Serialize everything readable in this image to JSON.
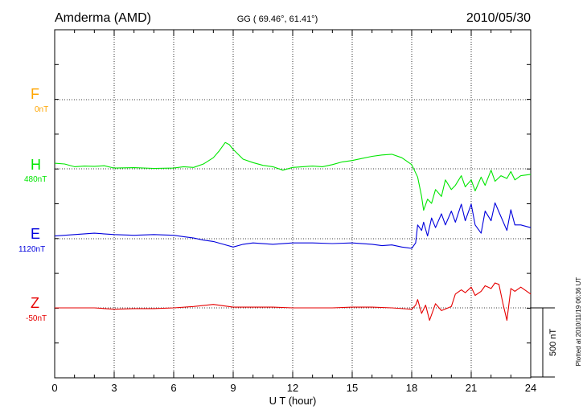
{
  "header": {
    "station": "Amderma (AMD)",
    "coords": "GG ( 69.46°,  61.41°)",
    "date": "2010/05/30"
  },
  "footer_note": "Plotted at 2010/11/19 06:36 UT",
  "chart_data": {
    "type": "line",
    "xlabel": "U T (hour)",
    "xlim": [
      0,
      24
    ],
    "xticks": [
      "0",
      "3",
      "6",
      "9",
      "12",
      "15",
      "18",
      "21",
      "24"
    ],
    "grid": true,
    "scale_bar": {
      "label": "500 nT",
      "value_nT": 500
    },
    "series": [
      {
        "name": "F",
        "baseline_label": "0nT",
        "color": "#ffa500",
        "points": []
      },
      {
        "name": "H",
        "baseline_label": "480nT",
        "color": "#00e600",
        "points": [
          [
            0,
            40
          ],
          [
            0.5,
            35
          ],
          [
            1,
            15
          ],
          [
            1.5,
            20
          ],
          [
            2,
            18
          ],
          [
            2.5,
            22
          ],
          [
            3,
            5
          ],
          [
            4,
            8
          ],
          [
            5,
            3
          ],
          [
            6,
            5
          ],
          [
            6.5,
            15
          ],
          [
            7,
            10
          ],
          [
            7.5,
            35
          ],
          [
            8,
            80
          ],
          [
            8.3,
            130
          ],
          [
            8.6,
            190
          ],
          [
            8.8,
            175
          ],
          [
            9,
            140
          ],
          [
            9.5,
            70
          ],
          [
            10,
            45
          ],
          [
            10.5,
            25
          ],
          [
            11,
            15
          ],
          [
            11.5,
            -10
          ],
          [
            12,
            10
          ],
          [
            12.5,
            15
          ],
          [
            13,
            20
          ],
          [
            13.5,
            15
          ],
          [
            14,
            30
          ],
          [
            14.5,
            50
          ],
          [
            15,
            60
          ],
          [
            15.5,
            75
          ],
          [
            16,
            90
          ],
          [
            16.5,
            100
          ],
          [
            17,
            105
          ],
          [
            17.5,
            80
          ],
          [
            18,
            30
          ],
          [
            18.3,
            -60
          ],
          [
            18.5,
            -200
          ],
          [
            18.6,
            -300
          ],
          [
            18.8,
            -220
          ],
          [
            19,
            -250
          ],
          [
            19.2,
            -150
          ],
          [
            19.5,
            -200
          ],
          [
            19.7,
            -80
          ],
          [
            20,
            -150
          ],
          [
            20.2,
            -120
          ],
          [
            20.5,
            -50
          ],
          [
            20.7,
            -130
          ],
          [
            21,
            -80
          ],
          [
            21.2,
            -160
          ],
          [
            21.5,
            -60
          ],
          [
            21.7,
            -120
          ],
          [
            22,
            -10
          ],
          [
            22.2,
            -90
          ],
          [
            22.5,
            -50
          ],
          [
            22.8,
            -70
          ],
          [
            23,
            -20
          ],
          [
            23.2,
            -80
          ],
          [
            23.5,
            -50
          ],
          [
            24,
            -40
          ]
        ]
      },
      {
        "name": "E",
        "baseline_label": "1120nT",
        "color": "#0000dd",
        "points": [
          [
            0,
            20
          ],
          [
            1,
            30
          ],
          [
            2,
            40
          ],
          [
            3,
            30
          ],
          [
            4,
            25
          ],
          [
            5,
            30
          ],
          [
            6,
            25
          ],
          [
            6.5,
            15
          ],
          [
            7,
            5
          ],
          [
            7.5,
            -10
          ],
          [
            8,
            -20
          ],
          [
            8.5,
            -40
          ],
          [
            9,
            -60
          ],
          [
            9.5,
            -40
          ],
          [
            10,
            -30
          ],
          [
            11,
            -40
          ],
          [
            12,
            -30
          ],
          [
            13,
            -30
          ],
          [
            14,
            -35
          ],
          [
            15,
            -30
          ],
          [
            16,
            -40
          ],
          [
            16.5,
            -50
          ],
          [
            17,
            -45
          ],
          [
            17.5,
            -60
          ],
          [
            18,
            -70
          ],
          [
            18.2,
            -30
          ],
          [
            18.3,
            100
          ],
          [
            18.5,
            60
          ],
          [
            18.6,
            120
          ],
          [
            18.8,
            20
          ],
          [
            19,
            150
          ],
          [
            19.2,
            80
          ],
          [
            19.5,
            180
          ],
          [
            19.7,
            100
          ],
          [
            20,
            200
          ],
          [
            20.2,
            120
          ],
          [
            20.5,
            250
          ],
          [
            20.7,
            130
          ],
          [
            21,
            250
          ],
          [
            21.2,
            100
          ],
          [
            21.5,
            40
          ],
          [
            21.7,
            200
          ],
          [
            22,
            130
          ],
          [
            22.2,
            260
          ],
          [
            22.5,
            160
          ],
          [
            22.8,
            60
          ],
          [
            23,
            210
          ],
          [
            23.2,
            100
          ],
          [
            23.5,
            100
          ],
          [
            24,
            80
          ]
        ]
      },
      {
        "name": "Z",
        "baseline_label": "-50nT",
        "color": "#e60000",
        "points": [
          [
            0,
            0
          ],
          [
            1,
            0
          ],
          [
            2,
            0
          ],
          [
            3,
            -10
          ],
          [
            4,
            -5
          ],
          [
            5,
            -5
          ],
          [
            6,
            0
          ],
          [
            7,
            10
          ],
          [
            8,
            25
          ],
          [
            9,
            5
          ],
          [
            10,
            5
          ],
          [
            11,
            5
          ],
          [
            12,
            0
          ],
          [
            13,
            0
          ],
          [
            14,
            0
          ],
          [
            15,
            5
          ],
          [
            16,
            5
          ],
          [
            17,
            0
          ],
          [
            18,
            -10
          ],
          [
            18.2,
            20
          ],
          [
            18.3,
            60
          ],
          [
            18.5,
            -40
          ],
          [
            18.7,
            20
          ],
          [
            18.9,
            -90
          ],
          [
            19.2,
            30
          ],
          [
            19.5,
            -20
          ],
          [
            20,
            10
          ],
          [
            20.2,
            100
          ],
          [
            20.5,
            130
          ],
          [
            20.7,
            110
          ],
          [
            21,
            150
          ],
          [
            21.2,
            90
          ],
          [
            21.5,
            120
          ],
          [
            21.7,
            160
          ],
          [
            22,
            140
          ],
          [
            22.2,
            180
          ],
          [
            22.4,
            170
          ],
          [
            22.6,
            30
          ],
          [
            22.8,
            -90
          ],
          [
            23,
            140
          ],
          [
            23.2,
            120
          ],
          [
            23.5,
            150
          ],
          [
            24,
            100
          ]
        ]
      }
    ]
  }
}
